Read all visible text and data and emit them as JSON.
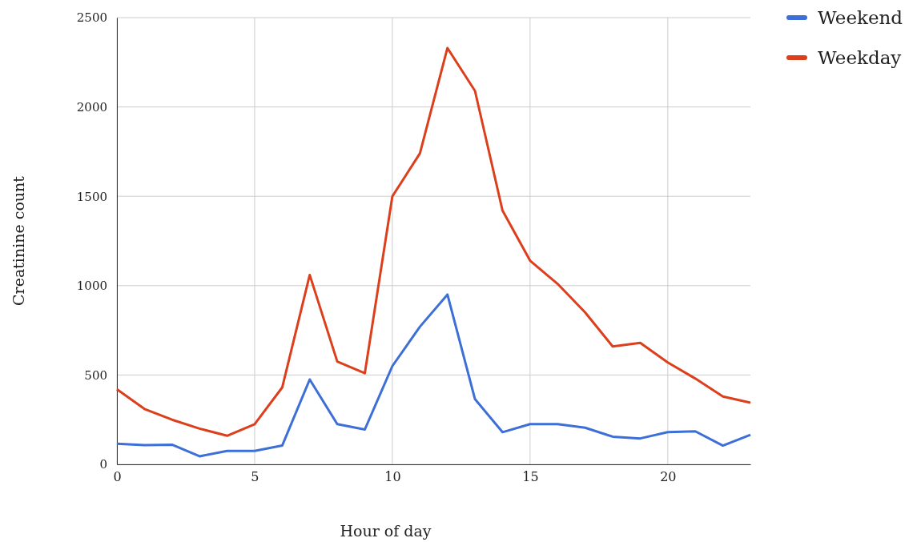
{
  "chart_data": {
    "type": "line",
    "xlabel": "Hour of day",
    "ylabel": "Creatinine count",
    "x": [
      0,
      1,
      2,
      3,
      4,
      5,
      6,
      7,
      8,
      9,
      10,
      11,
      12,
      13,
      14,
      15,
      16,
      17,
      18,
      19,
      20,
      21,
      22,
      23
    ],
    "series": [
      {
        "name": "Weekend",
        "color": "#3d6fd6",
        "values": [
          115,
          108,
          110,
          45,
          75,
          75,
          105,
          475,
          225,
          195,
          550,
          770,
          950,
          365,
          180,
          225,
          225,
          205,
          155,
          145,
          180,
          185,
          105,
          165
        ]
      },
      {
        "name": "Weekday",
        "color": "#dc3f1c",
        "values": [
          420,
          310,
          250,
          200,
          160,
          225,
          430,
          1060,
          575,
          510,
          1500,
          1740,
          2330,
          2090,
          1420,
          1140,
          1010,
          850,
          660,
          680,
          570,
          480,
          380,
          345
        ]
      }
    ],
    "xlim": [
      0,
      23
    ],
    "xticks": [
      0,
      5,
      10,
      15,
      20
    ],
    "ylim": [
      0,
      2500
    ],
    "yticks": [
      0,
      500,
      1000,
      1500,
      2000,
      2500
    ],
    "grid": true,
    "legend": "top right",
    "marker": "none",
    "line_style": "solid"
  }
}
